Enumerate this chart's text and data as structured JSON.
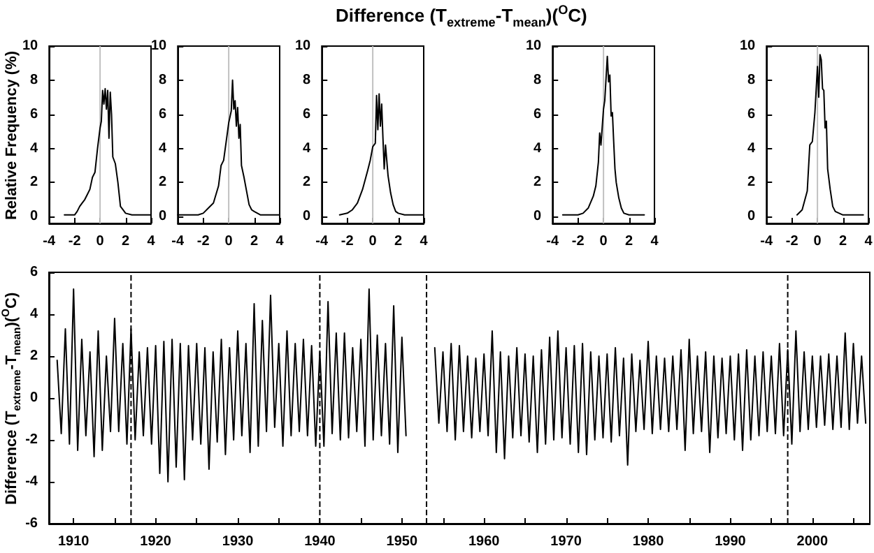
{
  "chart_data": [
    {
      "type": "line",
      "ylabel": "Relative Frequency (%)",
      "x": [
        -2.8,
        -2.4,
        -2.0,
        -1.8,
        -1.6,
        -1.4,
        -1.2,
        -1.0,
        -0.8,
        -0.6,
        -0.4,
        -0.2,
        0,
        0.1,
        0.2,
        0.3,
        0.4,
        0.5,
        0.6,
        0.7,
        0.8,
        0.9,
        1.0,
        1.2,
        1.4,
        1.6,
        1.8,
        2.0,
        2.5,
        3.0,
        4.0
      ],
      "series": [
        {
          "color": "#000000",
          "values": [
            0.1,
            0.1,
            0.1,
            0.3,
            0.6,
            0.8,
            1.0,
            1.3,
            1.6,
            2.3,
            2.6,
            4.0,
            5.2,
            5.6,
            7.4,
            6.6,
            7.5,
            6.3,
            7.4,
            4.6,
            7.3,
            6.0,
            3.5,
            3.1,
            2.0,
            0.6,
            0.4,
            0.2,
            0.1,
            0.1,
            0.1
          ]
        }
      ],
      "xlim": [
        -4,
        4
      ],
      "xticks": [
        -4,
        -2,
        0,
        2,
        4
      ],
      "ylim": [
        -0.4,
        10
      ],
      "yticks": [
        0,
        2,
        4,
        6,
        8,
        10
      ],
      "marker": "none",
      "ref_lines": [
        {
          "axis": "x",
          "value": 0,
          "color": "#c0c0c0"
        }
      ]
    },
    {
      "type": "line",
      "x": [
        -4,
        -3,
        -2.4,
        -2,
        -1.6,
        -1.2,
        -0.8,
        -0.6,
        -0.4,
        -0.2,
        0,
        0.2,
        0.3,
        0.4,
        0.5,
        0.6,
        0.7,
        0.8,
        0.9,
        1.0,
        1.2,
        1.4,
        1.6,
        1.8,
        2.0,
        2.5,
        3,
        4
      ],
      "series": [
        {
          "color": "#000000",
          "values": [
            0.1,
            0.1,
            0.1,
            0.2,
            0.5,
            0.8,
            1.8,
            3.0,
            3.3,
            4.4,
            5.5,
            6.2,
            8.0,
            6.3,
            6.8,
            5.3,
            6.4,
            4.6,
            5.4,
            3.0,
            2.3,
            1.5,
            0.7,
            0.4,
            0.3,
            0.1,
            0.1,
            0.1
          ]
        }
      ],
      "xlim": [
        -4,
        4
      ],
      "xticks": [
        -4,
        -2,
        0,
        2,
        4
      ],
      "ylim": [
        -0.4,
        10
      ],
      "yticks": [
        0,
        2,
        4,
        6,
        8,
        10
      ],
      "marker": "none",
      "ref_lines": [
        {
          "axis": "x",
          "value": 0,
          "color": "#c0c0c0"
        }
      ]
    },
    {
      "type": "line",
      "title": "Difference (T$_{extreme}$-T$_{mean}$)($^{O}$C)",
      "x": [
        -2.6,
        -2,
        -1.6,
        -1.2,
        -0.8,
        -0.4,
        -0.2,
        0,
        0.2,
        0.3,
        0.4,
        0.5,
        0.6,
        0.7,
        0.8,
        0.9,
        1.0,
        1.2,
        1.4,
        1.6,
        1.8,
        2.0,
        2.5,
        3,
        4
      ],
      "series": [
        {
          "color": "#000000",
          "values": [
            0.1,
            0.2,
            0.4,
            0.8,
            1.6,
            2.7,
            3.3,
            4.1,
            4.3,
            7.1,
            5.1,
            7.2,
            5.3,
            6.6,
            4.6,
            2.8,
            4.2,
            2.4,
            1.4,
            0.7,
            0.3,
            0.2,
            0.1,
            0.1,
            0.1
          ]
        }
      ],
      "xlim": [
        -4,
        4
      ],
      "xticks": [
        -4,
        -2,
        0,
        2,
        4
      ],
      "ylim": [
        -0.4,
        10
      ],
      "yticks": [
        0,
        2,
        4,
        6,
        8,
        10
      ],
      "marker": "none",
      "ref_lines": [
        {
          "axis": "x",
          "value": 0,
          "color": "#c0c0c0"
        }
      ]
    },
    {
      "type": "line",
      "x": [
        -3.2,
        -2,
        -1.6,
        -1.2,
        -0.8,
        -0.6,
        -0.4,
        -0.3,
        -0.2,
        0,
        0.1,
        0.2,
        0.3,
        0.4,
        0.5,
        0.6,
        0.7,
        0.8,
        0.9,
        1.0,
        1.2,
        1.4,
        1.6,
        2.0,
        2.6,
        3.2
      ],
      "series": [
        {
          "color": "#000000",
          "values": [
            0.1,
            0.1,
            0.2,
            0.5,
            1.2,
            1.8,
            3.2,
            4.9,
            4.2,
            6.3,
            6.8,
            8.1,
            9.4,
            7.9,
            8.3,
            5.9,
            6.1,
            4.4,
            2.8,
            2.0,
            1.1,
            0.5,
            0.2,
            0.1,
            0.1,
            0.1
          ]
        }
      ],
      "xlim": [
        -4,
        4
      ],
      "xticks": [
        -4,
        -2,
        0,
        2,
        4
      ],
      "ylim": [
        -0.4,
        10
      ],
      "yticks": [
        0,
        2,
        4,
        6,
        8,
        10
      ],
      "marker": "none",
      "ref_lines": [
        {
          "axis": "x",
          "value": 0,
          "color": "#c0c0c0"
        }
      ]
    },
    {
      "type": "line",
      "x": [
        -1.6,
        -1.2,
        -0.8,
        -0.6,
        -0.4,
        -0.2,
        0,
        0.1,
        0.2,
        0.3,
        0.4,
        0.5,
        0.6,
        0.7,
        0.8,
        1.0,
        1.2,
        1.4,
        2.0,
        2.6,
        3,
        3.6
      ],
      "series": [
        {
          "color": "#000000",
          "values": [
            0.1,
            0.4,
            1.5,
            4.2,
            4.4,
            6.1,
            8.8,
            7.0,
            9.5,
            9.2,
            7.5,
            7.4,
            5.2,
            5.6,
            2.8,
            1.6,
            0.6,
            0.3,
            0.1,
            0.1,
            0.1,
            0.1
          ]
        }
      ],
      "xlim": [
        -4,
        4
      ],
      "xticks": [
        -4,
        -2,
        0,
        2,
        4
      ],
      "ylim": [
        -0.4,
        10
      ],
      "yticks": [
        0,
        2,
        4,
        6,
        8,
        10
      ],
      "marker": "none",
      "ref_lines": [
        {
          "axis": "x",
          "value": 0,
          "color": "#c0c0c0"
        }
      ]
    },
    {
      "type": "line",
      "ylabel": "Difference (T$_{extreme}$-T$_{mean}$)($^{O}$C)",
      "x": [
        1908,
        1908.5,
        1909,
        1909.5,
        1910,
        1910.5,
        1911,
        1911.5,
        1912,
        1912.5,
        1913,
        1913.5,
        1914,
        1914.5,
        1915,
        1915.5,
        1916,
        1916.5,
        1917,
        1917.5,
        1918,
        1918.5,
        1919,
        1919.5,
        1920,
        1920.5,
        1921,
        1921.5,
        1922,
        1922.5,
        1923,
        1923.5,
        1924,
        1924.5,
        1925,
        1925.5,
        1926,
        1926.5,
        1927,
        1927.5,
        1928,
        1928.5,
        1929,
        1929.5,
        1930,
        1930.5,
        1931,
        1931.5,
        1932,
        1932.5,
        1933,
        1933.5,
        1934,
        1934.5,
        1935,
        1935.5,
        1936,
        1936.5,
        1937,
        1937.5,
        1938,
        1938.5,
        1939,
        1939.5,
        1940,
        1940.5,
        1941,
        1941.5,
        1942,
        1942.5,
        1943,
        1943.5,
        1944,
        1944.5,
        1945,
        1945.5,
        1946,
        1946.5,
        1947,
        1947.5,
        1948,
        1948.5,
        1949,
        1949.5,
        1950,
        1950.5,
        1952,
        1954,
        1954.5,
        1955,
        1955.5,
        1956,
        1956.5,
        1957,
        1957.5,
        1958,
        1958.5,
        1959,
        1959.5,
        1960,
        1960.5,
        1961,
        1961.5,
        1962,
        1962.5,
        1963,
        1963.5,
        1964,
        1964.5,
        1965,
        1965.5,
        1966,
        1966.5,
        1967,
        1967.5,
        1968,
        1968.5,
        1969,
        1969.5,
        1970,
        1970.5,
        1971,
        1971.5,
        1972,
        1972.5,
        1973,
        1973.5,
        1974,
        1974.5,
        1975,
        1975.5,
        1976,
        1976.5,
        1977,
        1977.5,
        1978,
        1978.5,
        1979,
        1979.5,
        1980,
        1980.5,
        1981,
        1981.5,
        1982,
        1982.5,
        1983,
        1983.5,
        1984,
        1984.5,
        1985,
        1985.5,
        1986,
        1986.5,
        1987,
        1987.5,
        1988,
        1988.5,
        1989,
        1989.5,
        1990,
        1990.5,
        1991,
        1991.5,
        1992,
        1992.5,
        1993,
        1993.5,
        1994,
        1994.5,
        1995,
        1995.5,
        1996,
        1996.5,
        1997,
        1997.5,
        1998,
        1998.5,
        1999,
        1999.5,
        2000,
        2000.5,
        2001,
        2001.5,
        2002,
        2002.5,
        2003,
        2003.5,
        2004,
        2004.5,
        2005,
        2005.5,
        2006,
        2006.5
      ],
      "series": [
        {
          "color": "#000000",
          "values": [
            1.8,
            -1.7,
            3.3,
            -2.2,
            5.2,
            -2.5,
            2.8,
            -1.8,
            2.2,
            -2.8,
            3.2,
            -2.5,
            2.0,
            -1.6,
            3.8,
            -1.6,
            2.6,
            -2.2,
            3.3,
            -2.0,
            2.2,
            -1.8,
            2.4,
            -2.2,
            2.5,
            -3.6,
            2.7,
            -4.0,
            2.8,
            -3.3,
            2.6,
            -3.9,
            2.5,
            -2.0,
            2.6,
            -2.2,
            2.4,
            -3.4,
            2.2,
            -2.1,
            2.8,
            -2.7,
            2.4,
            -2.0,
            3.2,
            -1.8,
            2.6,
            -2.6,
            4.5,
            -2.3,
            3.7,
            -1.6,
            4.9,
            -1.4,
            2.6,
            -2.3,
            3.2,
            -1.8,
            2.6,
            -1.6,
            2.8,
            -1.8,
            2.5,
            -2.3,
            2.2,
            -2.3,
            4.6,
            -1.7,
            3.1,
            -2.0,
            3.1,
            -1.9,
            2.4,
            -1.6,
            2.8,
            -2.3,
            5.2,
            -2.0,
            3.0,
            -1.8,
            2.6,
            -2.2,
            4.4,
            -2.6,
            2.9,
            -1.8,
            null,
            2.4,
            -1.2,
            2.2,
            -1.6,
            2.6,
            -2.0,
            2.5,
            -1.6,
            2.0,
            -1.9,
            1.9,
            -1.6,
            2.1,
            -1.8,
            3.2,
            -2.6,
            2.2,
            -2.9,
            2.0,
            -1.9,
            2.4,
            -1.8,
            2.1,
            -2.1,
            2.0,
            -2.6,
            2.3,
            -2.2,
            2.9,
            -2.0,
            3.2,
            -1.9,
            2.4,
            -2.2,
            2.5,
            -2.6,
            2.6,
            -2.7,
            2.2,
            -2.0,
            2.0,
            -1.9,
            2.1,
            -2.1,
            2.4,
            -1.8,
            1.9,
            -3.2,
            2.1,
            -1.6,
            1.8,
            -1.5,
            2.7,
            -1.7,
            2.0,
            -1.5,
            1.9,
            -1.6,
            2.0,
            -1.5,
            2.3,
            -2.5,
            2.8,
            -1.7,
            2.0,
            -1.6,
            2.2,
            -2.6,
            2.0,
            -1.9,
            1.9,
            -1.7,
            2.0,
            -2.0,
            2.1,
            -2.5,
            2.3,
            -2.0,
            2.0,
            -1.8,
            2.2,
            -1.6,
            2.0,
            -1.7,
            2.6,
            -1.8,
            2.3,
            -2.2,
            3.2,
            -1.6,
            2.2,
            -1.5,
            2.0,
            -1.4,
            2.0,
            -1.3,
            2.1,
            -1.5,
            2.0,
            -1.4,
            3.1,
            -1.5,
            2.6,
            -1.2,
            2.0,
            -1.2
          ]
        }
      ],
      "xlim": [
        1907,
        2007
      ],
      "xticks": [
        1910,
        {
          "value": 1915,
          "label": null
        },
        1920,
        {
          "value": 1925,
          "label": null
        },
        1930,
        {
          "value": 1935,
          "label": null
        },
        1940,
        {
          "value": 1945,
          "label": null
        },
        1950,
        {
          "value": 1955,
          "label": null
        },
        1960,
        {
          "value": 1965,
          "label": null
        },
        1970,
        {
          "value": 1975,
          "label": null
        },
        1980,
        {
          "value": 1985,
          "label": null
        },
        1990,
        {
          "value": 1995,
          "label": null
        },
        2000,
        {
          "value": 2005,
          "label": null
        }
      ],
      "ylim": [
        -6,
        6
      ],
      "yticks": [
        -6,
        -4,
        -2,
        0,
        2,
        4,
        6
      ],
      "marker": "none",
      "ref_lines": [
        {
          "axis": "x",
          "value": 1917,
          "color": "#000000",
          "line_style": "dashed"
        },
        {
          "axis": "x",
          "value": 1940,
          "color": "#000000",
          "line_style": "dashed"
        },
        {
          "axis": "x",
          "value": 1953,
          "color": "#000000",
          "line_style": "dashed"
        },
        {
          "axis": "x",
          "value": 1997,
          "color": "#000000",
          "line_style": "dashed"
        }
      ]
    }
  ]
}
